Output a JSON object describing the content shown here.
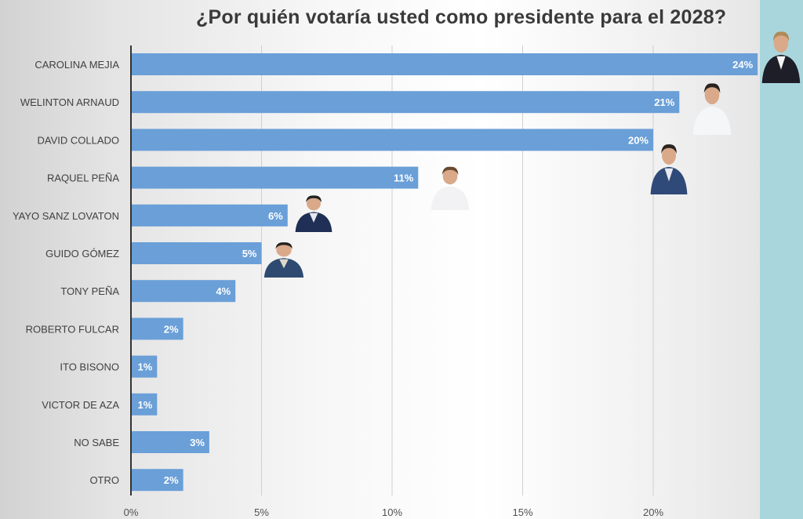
{
  "chart_data": {
    "type": "bar",
    "orientation": "horizontal",
    "title": "¿Por quién votaría usted como presidente para el 2028?",
    "xlabel": "",
    "ylabel": "",
    "categories": [
      "CAROLINA MEJIA",
      "WELINTON ARNAUD",
      "DAVID COLLADO",
      "RAQUEL PEÑA",
      "YAYO SANZ LOVATON",
      "GUIDO GÓMEZ",
      "TONY PEÑA",
      "ROBERTO FULCAR",
      "ITO BISONO",
      "VICTOR DE AZA",
      "NO SABE",
      "OTRO"
    ],
    "values": [
      24,
      21,
      20,
      11,
      6,
      5,
      4,
      2,
      1,
      1,
      3,
      2
    ],
    "value_labels": [
      "24%",
      "21%",
      "20%",
      "11%",
      "6%",
      "5%",
      "4%",
      "2%",
      "1%",
      "1%",
      "3%",
      "2%"
    ],
    "xlim": [
      0,
      24
    ],
    "xticks": [
      0,
      5,
      10,
      15,
      20
    ],
    "xtick_labels": [
      "0%",
      "5%",
      "10%",
      "15%",
      "20%"
    ],
    "grid": "vertical",
    "bar_color": "#6a9fd8",
    "legend": "none",
    "portraits": [
      "CAROLINA MEJIA",
      "WELINTON ARNAUD",
      "DAVID COLLADO",
      "RAQUEL PEÑA",
      "YAYO SANZ LOVATON",
      "GUIDO GÓMEZ"
    ]
  },
  "colors": {
    "side_strip": "#a9d6dd",
    "title": "#3a3a3a"
  }
}
